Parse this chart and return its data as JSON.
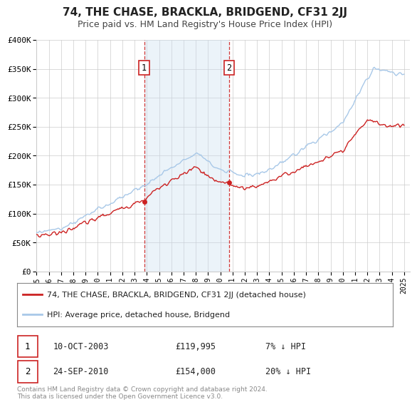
{
  "title": "74, THE CHASE, BRACKLA, BRIDGEND, CF31 2JJ",
  "subtitle": "Price paid vs. HM Land Registry's House Price Index (HPI)",
  "ylim": [
    0,
    400000
  ],
  "yticks": [
    0,
    50000,
    100000,
    150000,
    200000,
    250000,
    300000,
    350000,
    400000
  ],
  "ytick_labels": [
    "£0",
    "£50K",
    "£100K",
    "£150K",
    "£200K",
    "£250K",
    "£300K",
    "£350K",
    "£400K"
  ],
  "xlim_start": 1995.0,
  "xlim_end": 2025.5,
  "xticks": [
    1995,
    1996,
    1997,
    1998,
    1999,
    2000,
    2001,
    2002,
    2003,
    2004,
    2005,
    2006,
    2007,
    2008,
    2009,
    2010,
    2011,
    2012,
    2013,
    2014,
    2015,
    2016,
    2017,
    2018,
    2019,
    2020,
    2021,
    2022,
    2023,
    2024,
    2025
  ],
  "hpi_color": "#a8c8e8",
  "price_color": "#cc2222",
  "sale1_x": 2003.78,
  "sale1_y": 119995,
  "sale1_label": "1",
  "sale1_date": "10-OCT-2003",
  "sale1_price": "£119,995",
  "sale1_hpi": "7% ↓ HPI",
  "sale2_x": 2010.73,
  "sale2_y": 154000,
  "sale2_label": "2",
  "sale2_date": "24-SEP-2010",
  "sale2_price": "£154,000",
  "sale2_hpi": "20% ↓ HPI",
  "vline_color": "#cc2222",
  "shade_color": "#c8ddf0",
  "shade_alpha": 0.35,
  "legend_label_price": "74, THE CHASE, BRACKLA, BRIDGEND, CF31 2JJ (detached house)",
  "legend_label_hpi": "HPI: Average price, detached house, Bridgend",
  "footer": "Contains HM Land Registry data © Crown copyright and database right 2024.\nThis data is licensed under the Open Government Licence v3.0.",
  "background_color": "#ffffff",
  "grid_color": "#cccccc",
  "title_fontsize": 11,
  "subtitle_fontsize": 9
}
